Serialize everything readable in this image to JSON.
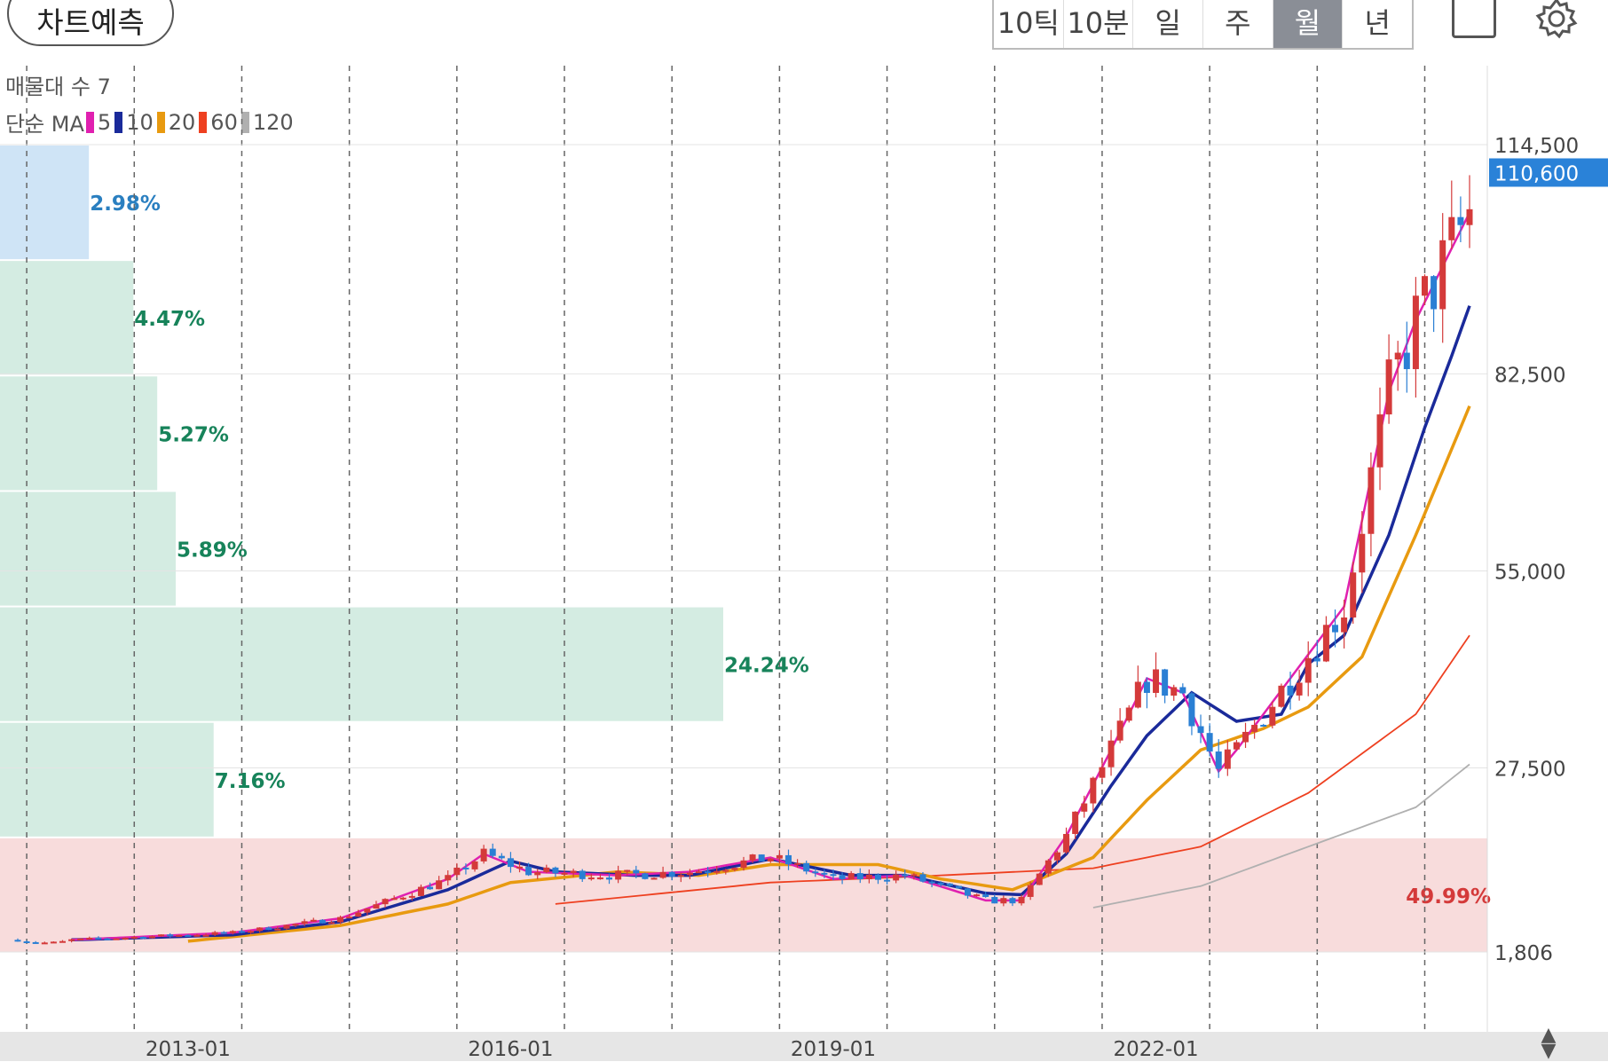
{
  "toolbar": {
    "chart_predict_label": "차트예측",
    "periods": [
      "10틱",
      "10분",
      "일",
      "주",
      "월",
      "년"
    ],
    "active_period": "월"
  },
  "indicators": {
    "volume_profile_label": "매물대 수 7",
    "ma_label": "단순 MA",
    "ma_periods": [
      {
        "label": "5",
        "color": "#e020b0"
      },
      {
        "label": "10",
        "color": "#1a2a9a"
      },
      {
        "label": "20",
        "color": "#e89a10"
      },
      {
        "label": "60",
        "color": "#ee4020"
      },
      {
        "label": "120",
        "color": "#b0b0b0"
      }
    ]
  },
  "chart_data": {
    "type": "candlestick",
    "y_ticks": [
      "114,500",
      "82,500",
      "55,000",
      "27,500",
      "1,806"
    ],
    "y_tick_values": [
      114500,
      82500,
      55000,
      27500,
      1806
    ],
    "x_ticks": [
      "2013-01",
      "2016-01",
      "2019-01",
      "2022-01"
    ],
    "x_tick_values": [
      "2013-01",
      "2016-01",
      "2019-01",
      "2022-01"
    ],
    "x_range": [
      "2011-06",
      "2024-12"
    ],
    "current_price": "110,600",
    "current_price_value": 110600,
    "grid": "vertical dashed",
    "colors": {
      "up": "#d43a3a",
      "down": "#2a7fd4",
      "current_bg": "#2a82d8"
    },
    "volume_profile": [
      {
        "percent": "2.98%",
        "value": 2.98,
        "color": "#cfe4f6",
        "text_color": "#2a7fc0"
      },
      {
        "percent": "4.47%",
        "value": 4.47,
        "color": "#d4ece2",
        "text_color": "#17835a"
      },
      {
        "percent": "5.27%",
        "value": 5.27,
        "color": "#d4ece2",
        "text_color": "#17835a"
      },
      {
        "percent": "5.89%",
        "value": 5.89,
        "color": "#d4ece2",
        "text_color": "#17835a"
      },
      {
        "percent": "24.24%",
        "value": 24.24,
        "color": "#d4ece2",
        "text_color": "#17835a"
      },
      {
        "percent": "7.16%",
        "value": 7.16,
        "color": "#d4ece2",
        "text_color": "#17835a"
      },
      {
        "percent": "49.99%",
        "value": 49.99,
        "color": "#f8dcdc",
        "text_color": "#d43a3a"
      }
    ],
    "series": [
      {
        "name": "5",
        "anchors": [
          [
            "2011-12",
            3500
          ],
          [
            "2013-06",
            4500
          ],
          [
            "2014-06",
            6500
          ],
          [
            "2015-06",
            12000
          ],
          [
            "2015-10",
            15500
          ],
          [
            "2016-03",
            13000
          ],
          [
            "2017-01",
            12500
          ],
          [
            "2017-09",
            13000
          ],
          [
            "2018-06",
            15000
          ],
          [
            "2019-01",
            12000
          ],
          [
            "2019-09",
            12500
          ],
          [
            "2020-06",
            9000
          ],
          [
            "2020-10",
            9000
          ],
          [
            "2021-03",
            18000
          ],
          [
            "2021-08",
            30000
          ],
          [
            "2021-12",
            40000
          ],
          [
            "2022-04",
            38000
          ],
          [
            "2022-08",
            27000
          ],
          [
            "2022-10",
            30000
          ],
          [
            "2023-04",
            40000
          ],
          [
            "2023-10",
            50000
          ],
          [
            "2024-03",
            80000
          ],
          [
            "2024-06",
            90000
          ],
          [
            "2024-10",
            100000
          ],
          [
            "2024-12",
            105000
          ]
        ]
      },
      {
        "name": "10",
        "anchors": [
          [
            "2011-12",
            3500
          ],
          [
            "2013-06",
            4200
          ],
          [
            "2014-06",
            6000
          ],
          [
            "2015-06",
            10500
          ],
          [
            "2016-01",
            14500
          ],
          [
            "2016-06",
            13000
          ],
          [
            "2017-03",
            12500
          ],
          [
            "2017-09",
            12500
          ],
          [
            "2018-06",
            14800
          ],
          [
            "2019-03",
            12500
          ],
          [
            "2019-09",
            12500
          ],
          [
            "2020-06",
            10000
          ],
          [
            "2020-10",
            9800
          ],
          [
            "2021-03",
            15500
          ],
          [
            "2021-08",
            25000
          ],
          [
            "2021-12",
            32000
          ],
          [
            "2022-05",
            38000
          ],
          [
            "2022-10",
            34000
          ],
          [
            "2023-03",
            35000
          ],
          [
            "2023-06",
            42000
          ],
          [
            "2023-10",
            46000
          ],
          [
            "2024-03",
            60000
          ],
          [
            "2024-07",
            75000
          ],
          [
            "2024-10",
            85000
          ],
          [
            "2024-12",
            92000
          ]
        ]
      },
      {
        "name": "20",
        "anchors": [
          [
            "2013-01",
            3300
          ],
          [
            "2014-06",
            5500
          ],
          [
            "2015-06",
            8500
          ],
          [
            "2016-01",
            11500
          ],
          [
            "2017-01",
            13000
          ],
          [
            "2017-10",
            12500
          ],
          [
            "2018-06",
            14000
          ],
          [
            "2019-06",
            14000
          ],
          [
            "2020-01",
            12000
          ],
          [
            "2020-09",
            10500
          ],
          [
            "2021-06",
            15000
          ],
          [
            "2021-12",
            23000
          ],
          [
            "2022-06",
            30000
          ],
          [
            "2023-01",
            33000
          ],
          [
            "2023-06",
            36000
          ],
          [
            "2023-12",
            43000
          ],
          [
            "2024-06",
            60000
          ],
          [
            "2024-12",
            78000
          ]
        ]
      },
      {
        "name": "60",
        "anchors": [
          [
            "2016-06",
            8500
          ],
          [
            "2018-06",
            11500
          ],
          [
            "2020-01",
            12500
          ],
          [
            "2021-06",
            13500
          ],
          [
            "2022-06",
            16500
          ],
          [
            "2023-06",
            24000
          ],
          [
            "2024-06",
            35000
          ],
          [
            "2024-12",
            46000
          ]
        ]
      },
      {
        "name": "120",
        "anchors": [
          [
            "2021-06",
            8000
          ],
          [
            "2022-06",
            11000
          ],
          [
            "2023-06",
            16500
          ],
          [
            "2024-06",
            22000
          ],
          [
            "2024-12",
            28000
          ]
        ]
      }
    ]
  }
}
